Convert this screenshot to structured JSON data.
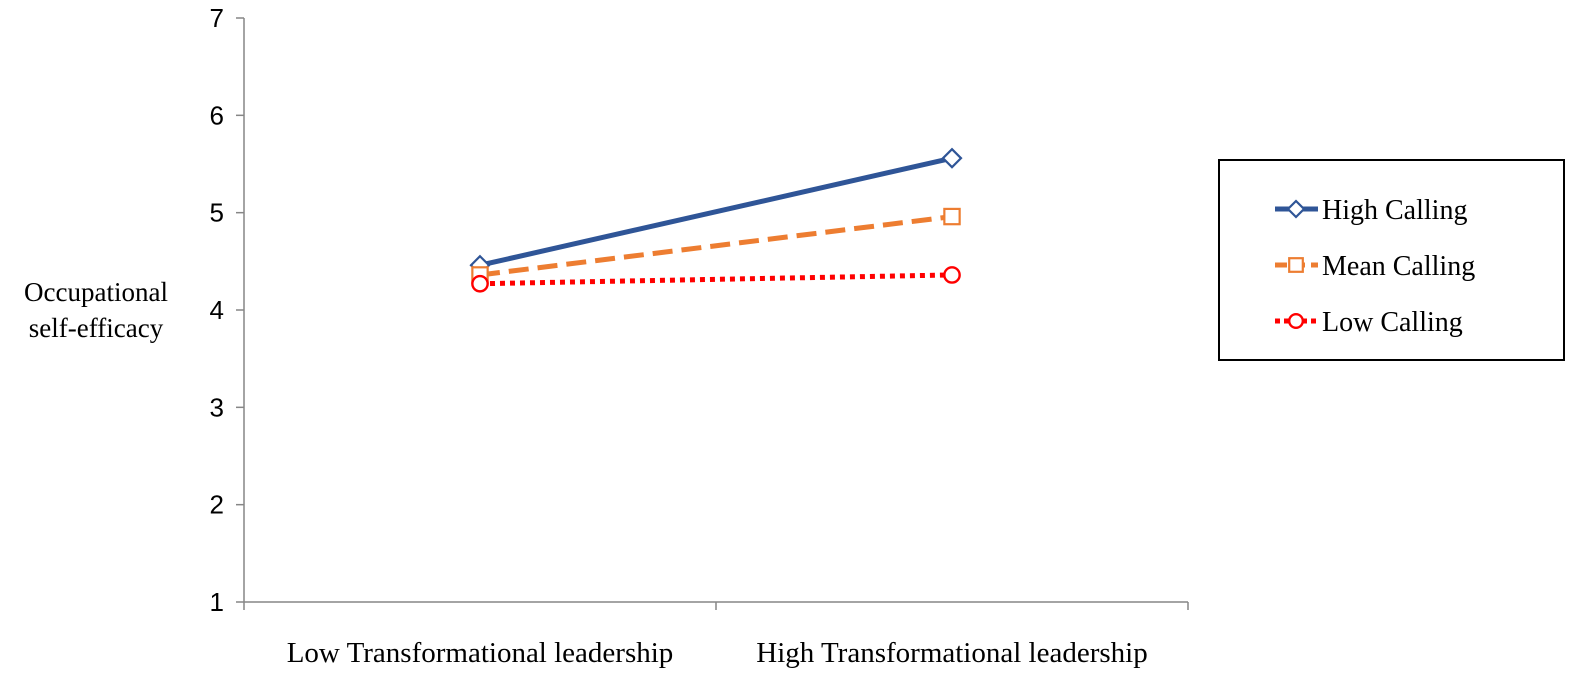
{
  "chart_data": {
    "type": "line",
    "title": "",
    "xlabel": "",
    "ylabel_lines": [
      "Occupational",
      "self-efficacy"
    ],
    "categories": [
      "Low Transformational leadership",
      "High Transformational leadership"
    ],
    "yticks": [
      1,
      2,
      3,
      4,
      5,
      6,
      7
    ],
    "ylim": [
      1,
      7
    ],
    "grid": false,
    "legend_position": "right",
    "series": [
      {
        "name": "High Calling",
        "values": [
          4.46,
          5.56
        ],
        "color": "#2F5597",
        "dash": "solid",
        "marker": "diamond"
      },
      {
        "name": "Mean Calling",
        "values": [
          4.36,
          4.96
        ],
        "color": "#ED7D31",
        "dash": "dashed",
        "marker": "square"
      },
      {
        "name": "Low Calling",
        "values": [
          4.27,
          4.36
        ],
        "color": "#FF0000",
        "dash": "dotted",
        "marker": "circle"
      }
    ]
  }
}
